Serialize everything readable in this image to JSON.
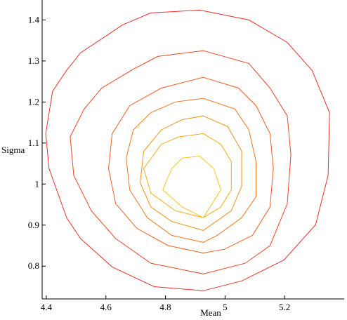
{
  "chart_data": {
    "type": "contour",
    "xlabel": "Mean",
    "ylabel": "Sigma",
    "xlim": [
      4.386,
      5.4
    ],
    "ylim": [
      0.72,
      1.44
    ],
    "xticks": [
      4.4,
      4.6,
      4.8,
      5,
      5.2
    ],
    "yticks": [
      0.8,
      0.9,
      1,
      1.1,
      1.2,
      1.3,
      1.4
    ],
    "series": [
      {
        "color": "#e8302e",
        "x": [
          4.915,
          5.08,
          5.209,
          5.292,
          5.351,
          5.346,
          5.304,
          5.198,
          5.056,
          4.927,
          4.762,
          4.621,
          4.515,
          4.468,
          4.409,
          4.398,
          4.421,
          4.468,
          4.515,
          4.586,
          4.656,
          4.751
        ],
        "y": [
          1.424,
          1.4,
          1.345,
          1.277,
          1.174,
          1.021,
          0.901,
          0.815,
          0.764,
          0.74,
          0.75,
          0.798,
          0.867,
          0.918,
          1.038,
          1.123,
          1.226,
          1.277,
          1.32,
          1.354,
          1.388,
          1.417
        ]
      },
      {
        "color": "#ec4426",
        "x": [
          4.927,
          5.08,
          5.151,
          5.209,
          5.221,
          5.209,
          5.151,
          5.068,
          4.927,
          4.751,
          4.633,
          4.551,
          4.492,
          4.48,
          4.527,
          4.586,
          4.692,
          4.774
        ],
        "y": [
          1.325,
          1.294,
          1.234,
          1.166,
          1.072,
          0.952,
          0.85,
          0.807,
          0.781,
          0.807,
          0.867,
          0.935,
          1.021,
          1.115,
          1.183,
          1.234,
          1.28,
          1.311
        ]
      },
      {
        "color": "#ef5c20",
        "x": [
          4.927,
          5.045,
          5.104,
          5.151,
          5.162,
          5.151,
          5.092,
          4.998,
          4.927,
          4.809,
          4.704,
          4.633,
          4.609,
          4.621,
          4.68,
          4.786
        ],
        "y": [
          1.26,
          1.234,
          1.191,
          1.123,
          1.038,
          0.944,
          0.875,
          0.841,
          0.832,
          0.85,
          0.892,
          0.952,
          1.038,
          1.123,
          1.191,
          1.234
        ]
      },
      {
        "color": "#f1761a",
        "x": [
          4.927,
          5.033,
          5.08,
          5.104,
          5.104,
          5.056,
          4.974,
          4.927,
          4.821,
          4.739,
          4.68,
          4.668,
          4.692,
          4.751,
          4.833
        ],
        "y": [
          1.209,
          1.183,
          1.132,
          1.055,
          0.969,
          0.918,
          0.875,
          0.858,
          0.875,
          0.918,
          0.986,
          1.063,
          1.132,
          1.174,
          1.2
        ]
      },
      {
        "color": "#f39015",
        "x": [
          4.927,
          5.009,
          5.056,
          5.056,
          5.021,
          4.927,
          4.821,
          4.751,
          4.715,
          4.727,
          4.786,
          4.856
        ],
        "y": [
          1.166,
          1.14,
          1.08,
          0.995,
          0.935,
          0.887,
          0.909,
          0.944,
          1.003,
          1.08,
          1.132,
          1.157
        ]
      },
      {
        "color": "#f5aa12",
        "x": [
          4.927,
          4.986,
          5.021,
          5.021,
          4.986,
          4.927,
          4.833,
          4.751,
          4.727,
          4.786,
          4.845
        ],
        "y": [
          1.123,
          1.097,
          1.055,
          0.986,
          0.944,
          0.918,
          0.935,
          0.978,
          1.038,
          1.097,
          1.115
        ]
      },
      {
        "color": "#f5c81e",
        "x": [
          4.915,
          4.962,
          4.986,
          4.927,
          4.856,
          4.791,
          4.821,
          4.856
        ],
        "y": [
          1.068,
          1.038,
          0.986,
          0.918,
          0.944,
          0.986,
          1.038,
          1.063
        ]
      }
    ]
  }
}
